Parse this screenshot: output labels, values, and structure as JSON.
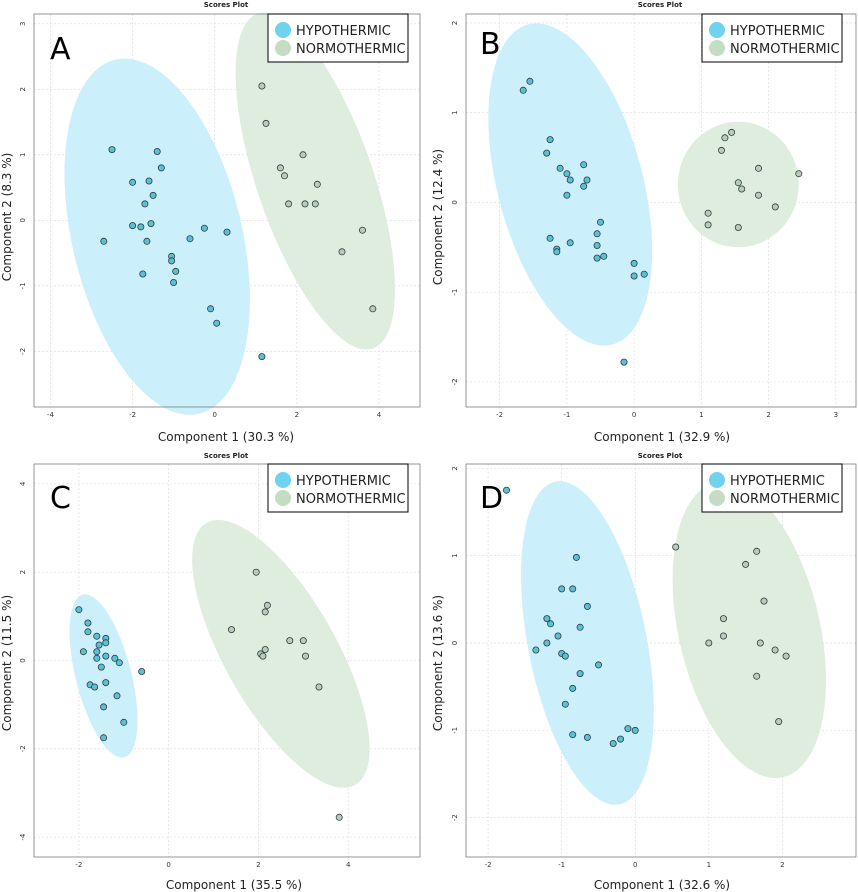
{
  "colors": {
    "hypothermic_fill": "#c7eefb",
    "hypothermic_dot": "#5bbfd6",
    "hypothermic_legend": "#6fd3ef",
    "normothermic_fill": "#dcebdc",
    "normothermic_dot": "#b8ccb8",
    "normothermic_legend": "#c4dcc4"
  },
  "chart_data": [
    {
      "type": "scatter",
      "panel": "A",
      "title": "Scores Plot",
      "xlabel": "Component 1 (30.3 %)",
      "ylabel": "Component 2 (8.3 %)",
      "xlim": [
        -4.4,
        5.0
      ],
      "ylim": [
        -2.85,
        3.15
      ],
      "xticks": [
        -4,
        -2,
        0,
        2,
        4
      ],
      "yticks": [
        -2,
        -1,
        0,
        1,
        2,
        3
      ],
      "legend": [
        "HYPOTHERMIC",
        "NORMOTHERMIC"
      ],
      "legend_position": "top-right",
      "series": [
        {
          "name": "HYPOTHERMIC",
          "ellipse": {
            "cx": -1.4,
            "cy": -0.25,
            "rx": 1.95,
            "ry": 2.95,
            "angle_deg": 31
          },
          "points": [
            [
              -2.5,
              1.08
            ],
            [
              -1.4,
              1.05
            ],
            [
              -1.3,
              0.8
            ],
            [
              -1.6,
              0.6
            ],
            [
              -2.0,
              0.58
            ],
            [
              -1.5,
              0.38
            ],
            [
              -1.7,
              0.25
            ],
            [
              -2.7,
              -0.32
            ],
            [
              -2.0,
              -0.08
            ],
            [
              -1.8,
              -0.1
            ],
            [
              -1.55,
              -0.05
            ],
            [
              -1.65,
              -0.32
            ],
            [
              -0.6,
              -0.28
            ],
            [
              -0.25,
              -0.12
            ],
            [
              0.3,
              -0.18
            ],
            [
              -1.05,
              -0.55
            ],
            [
              -1.05,
              -0.62
            ],
            [
              -0.95,
              -0.78
            ],
            [
              -1.75,
              -0.82
            ],
            [
              -1.0,
              -0.95
            ],
            [
              -0.1,
              -1.35
            ],
            [
              0.05,
              -1.57
            ],
            [
              1.15,
              -2.08
            ]
          ]
        },
        {
          "name": "NORMOTHERMIC",
          "ellipse": {
            "cx": 2.45,
            "cy": 0.6,
            "rx": 1.3,
            "ry": 2.95,
            "angle_deg": 33
          },
          "points": [
            [
              1.15,
              2.05
            ],
            [
              1.25,
              1.48
            ],
            [
              1.6,
              0.8
            ],
            [
              1.7,
              0.68
            ],
            [
              2.15,
              1.0
            ],
            [
              2.5,
              0.55
            ],
            [
              1.8,
              0.25
            ],
            [
              2.2,
              0.25
            ],
            [
              2.45,
              0.25
            ],
            [
              3.6,
              -0.15
            ],
            [
              3.1,
              -0.48
            ],
            [
              3.85,
              -1.35
            ]
          ]
        }
      ]
    },
    {
      "type": "scatter",
      "panel": "B",
      "title": "Scores Plot",
      "xlabel": "Component 1 (32.9 %)",
      "ylabel": "Component 2 (12.4 %)",
      "xlim": [
        -2.5,
        3.3
      ],
      "ylim": [
        -2.28,
        2.1
      ],
      "xticks": [
        -2,
        -1,
        0,
        1,
        2,
        3
      ],
      "yticks": [
        -2,
        -1,
        0,
        1,
        2
      ],
      "legend": [
        "HYPOTHERMIC",
        "NORMOTHERMIC"
      ],
      "legend_position": "top-right",
      "series": [
        {
          "name": "HYPOTHERMIC",
          "ellipse": {
            "cx": -0.95,
            "cy": 0.2,
            "rx": 1.05,
            "ry": 1.9,
            "angle_deg": 23
          },
          "points": [
            [
              -1.55,
              1.35
            ],
            [
              -1.65,
              1.25
            ],
            [
              -1.25,
              0.7
            ],
            [
              -1.3,
              0.55
            ],
            [
              -1.1,
              0.38
            ],
            [
              -1.0,
              0.32
            ],
            [
              -0.95,
              0.25
            ],
            [
              -0.75,
              0.42
            ],
            [
              -0.7,
              0.25
            ],
            [
              -0.75,
              0.18
            ],
            [
              -1.0,
              0.08
            ],
            [
              -0.5,
              -0.22
            ],
            [
              -0.55,
              -0.35
            ],
            [
              -1.25,
              -0.4
            ],
            [
              -0.95,
              -0.45
            ],
            [
              -0.55,
              -0.48
            ],
            [
              -1.15,
              -0.52
            ],
            [
              -1.15,
              -0.55
            ],
            [
              -0.45,
              -0.6
            ],
            [
              -0.55,
              -0.62
            ],
            [
              0.0,
              -0.68
            ],
            [
              0.15,
              -0.8
            ],
            [
              0.0,
              -0.82
            ],
            [
              -0.15,
              -1.78
            ]
          ]
        },
        {
          "name": "NORMOTHERMIC",
          "ellipse": {
            "cx": 1.55,
            "cy": 0.2,
            "rx": 0.9,
            "ry": 0.7,
            "angle_deg": 0
          },
          "points": [
            [
              1.45,
              0.78
            ],
            [
              1.35,
              0.72
            ],
            [
              1.3,
              0.58
            ],
            [
              1.85,
              0.38
            ],
            [
              1.55,
              0.22
            ],
            [
              1.6,
              0.15
            ],
            [
              1.85,
              0.08
            ],
            [
              2.45,
              0.32
            ],
            [
              2.1,
              -0.05
            ],
            [
              1.1,
              -0.12
            ],
            [
              1.1,
              -0.25
            ],
            [
              1.55,
              -0.28
            ]
          ]
        }
      ]
    },
    {
      "type": "scatter",
      "panel": "C",
      "title": "Scores Plot",
      "xlabel": "Component 1 (35.5 %)",
      "ylabel": "Component 2 (11.5 %)",
      "xlim": [
        -3.0,
        5.6
      ],
      "ylim": [
        -4.45,
        4.45
      ],
      "xticks": [
        -2,
        0,
        2,
        4
      ],
      "yticks": [
        -4,
        -2,
        0,
        2,
        4
      ],
      "legend": [
        "HYPOTHERMIC",
        "NORMOTHERMIC"
      ],
      "legend_position": "top-right",
      "series": [
        {
          "name": "HYPOTHERMIC",
          "ellipse": {
            "cx": -1.45,
            "cy": -0.35,
            "rx": 0.62,
            "ry": 1.9,
            "angle_deg": 14
          },
          "points": [
            [
              -2.0,
              1.15
            ],
            [
              -1.8,
              0.85
            ],
            [
              -1.8,
              0.65
            ],
            [
              -1.6,
              0.55
            ],
            [
              -1.4,
              0.5
            ],
            [
              -1.4,
              0.4
            ],
            [
              -1.55,
              0.35
            ],
            [
              -1.9,
              0.2
            ],
            [
              -1.6,
              0.2
            ],
            [
              -1.4,
              0.1
            ],
            [
              -1.6,
              0.05
            ],
            [
              -1.2,
              0.05
            ],
            [
              -1.1,
              -0.05
            ],
            [
              -1.5,
              -0.15
            ],
            [
              -0.6,
              -0.25
            ],
            [
              -1.4,
              -0.5
            ],
            [
              -1.75,
              -0.55
            ],
            [
              -1.65,
              -0.6
            ],
            [
              -1.15,
              -0.8
            ],
            [
              -1.45,
              -1.05
            ],
            [
              -1.0,
              -1.4
            ],
            [
              -1.45,
              -1.75
            ]
          ]
        },
        {
          "name": "NORMOTHERMIC",
          "ellipse": {
            "cx": 2.5,
            "cy": 0.15,
            "rx": 1.25,
            "ry": 3.4,
            "angle_deg": 29
          },
          "points": [
            [
              1.95,
              2.0
            ],
            [
              2.2,
              1.25
            ],
            [
              2.15,
              1.1
            ],
            [
              1.4,
              0.7
            ],
            [
              2.7,
              0.45
            ],
            [
              3.0,
              0.45
            ],
            [
              2.15,
              0.25
            ],
            [
              2.05,
              0.15
            ],
            [
              2.1,
              0.1
            ],
            [
              3.05,
              0.1
            ],
            [
              3.35,
              -0.6
            ],
            [
              3.8,
              -3.55
            ]
          ]
        }
      ]
    },
    {
      "type": "scatter",
      "panel": "D",
      "title": "Scores Plot",
      "xlabel": "Component 1 (32.6 %)",
      "ylabel": "Component 2 (13.6 %)",
      "xlim": [
        -2.3,
        3.0
      ],
      "ylim": [
        -2.45,
        2.05
      ],
      "xticks": [
        -2,
        -1,
        0,
        1,
        2
      ],
      "yticks": [
        -2,
        -1,
        0,
        1,
        2
      ],
      "legend": [
        "HYPOTHERMIC",
        "NORMOTHERMIC"
      ],
      "legend_position": "top-right",
      "series": [
        {
          "name": "HYPOTHERMIC",
          "ellipse": {
            "cx": -0.65,
            "cy": 0.0,
            "rx": 0.8,
            "ry": 1.9,
            "angle_deg": 14
          },
          "points": [
            [
              -1.75,
              1.75
            ],
            [
              -0.8,
              0.98
            ],
            [
              -1.0,
              0.62
            ],
            [
              -0.85,
              0.62
            ],
            [
              -0.65,
              0.42
            ],
            [
              -1.2,
              0.28
            ],
            [
              -1.15,
              0.22
            ],
            [
              -0.75,
              0.18
            ],
            [
              -1.05,
              0.08
            ],
            [
              -1.2,
              0.0
            ],
            [
              -1.35,
              -0.08
            ],
            [
              -1.0,
              -0.12
            ],
            [
              -0.95,
              -0.15
            ],
            [
              -0.5,
              -0.25
            ],
            [
              -0.75,
              -0.35
            ],
            [
              -0.85,
              -0.52
            ],
            [
              -0.95,
              -0.7
            ],
            [
              -0.1,
              -0.98
            ],
            [
              0.0,
              -1.0
            ],
            [
              -0.85,
              -1.05
            ],
            [
              -0.65,
              -1.08
            ],
            [
              -0.2,
              -1.1
            ],
            [
              -0.3,
              -1.15
            ]
          ]
        },
        {
          "name": "NORMOTHERMIC",
          "ellipse": {
            "cx": 1.55,
            "cy": 0.15,
            "rx": 0.95,
            "ry": 1.75,
            "angle_deg": 17
          },
          "points": [
            [
              0.55,
              1.1
            ],
            [
              1.65,
              1.05
            ],
            [
              1.5,
              0.9
            ],
            [
              1.75,
              0.48
            ],
            [
              1.2,
              0.28
            ],
            [
              1.2,
              0.08
            ],
            [
              1.0,
              0.0
            ],
            [
              1.7,
              0.0
            ],
            [
              1.9,
              -0.08
            ],
            [
              2.05,
              -0.15
            ],
            [
              1.65,
              -0.38
            ],
            [
              1.95,
              -0.9
            ]
          ]
        }
      ]
    }
  ]
}
